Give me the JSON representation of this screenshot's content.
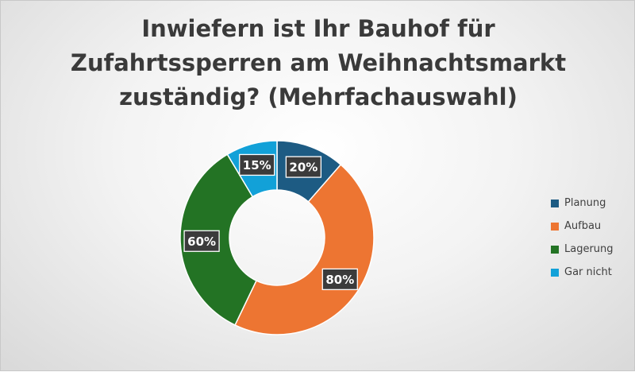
{
  "chart_data": {
    "type": "pie",
    "style": "donut",
    "title": [
      "Inwiefern ist Ihr Bauhof für",
      "Zufahrtssperren am Weihnachtsmarkt",
      "zuständig? (Mehrfachauswahl)"
    ],
    "categories": [
      "Planung",
      "Aufbau",
      "Lagerung",
      "Gar nicht"
    ],
    "values": [
      20,
      80,
      60,
      15
    ],
    "labels": [
      "20%",
      "80%",
      "60%",
      "15%"
    ],
    "colors": [
      "#1d5b83",
      "#ed7532",
      "#237324",
      "#12a1d8"
    ],
    "legend_position": "right"
  }
}
